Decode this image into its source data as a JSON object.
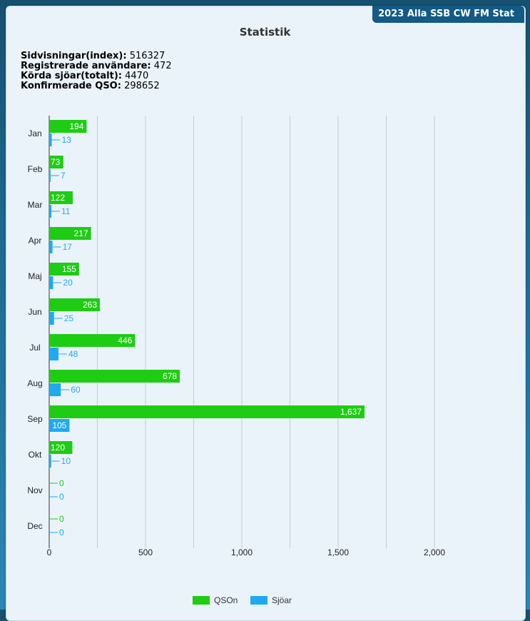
{
  "header": {
    "badge": "2023 Alla SSB CW FM Stat"
  },
  "title": "Statistik",
  "stats": [
    {
      "label": "Sidvisningar(index):",
      "value": "516327"
    },
    {
      "label": "Registrerade användare:",
      "value": "472"
    },
    {
      "label": "Körda sjöar(totalt):",
      "value": "4470"
    },
    {
      "label": "Konfirmerade QSO:",
      "value": "298652"
    }
  ],
  "colors": {
    "qso": "#1fcc14",
    "sjoar": "#1fa9f2"
  },
  "chart_data": {
    "type": "bar",
    "orientation": "horizontal",
    "categories": [
      "Jan",
      "Feb",
      "Mar",
      "Apr",
      "Maj",
      "Jun",
      "Jul",
      "Aug",
      "Sep",
      "Okt",
      "Nov",
      "Dec"
    ],
    "series": [
      {
        "name": "QSOn",
        "values": [
          194,
          73,
          122,
          217,
          155,
          263,
          446,
          678,
          1637,
          120,
          0,
          0
        ],
        "labels": [
          "194",
          "73",
          "122",
          "217",
          "155",
          "263",
          "446",
          "678",
          "1,637",
          "120",
          "0",
          "0"
        ]
      },
      {
        "name": "Sjöar",
        "values": [
          13,
          7,
          11,
          17,
          20,
          25,
          48,
          60,
          105,
          10,
          0,
          0
        ],
        "labels": [
          "13",
          "7",
          "11",
          "17",
          "20",
          "25",
          "48",
          "60",
          "105",
          "10",
          "0",
          "0"
        ]
      }
    ],
    "xlim": [
      0,
      2000
    ],
    "xticks": [
      0,
      500,
      1000,
      1500,
      2000
    ],
    "xtick_labels": [
      "0",
      "500",
      "1,000",
      "1,500",
      "2,000"
    ],
    "grid": true,
    "legend": "bottom"
  }
}
